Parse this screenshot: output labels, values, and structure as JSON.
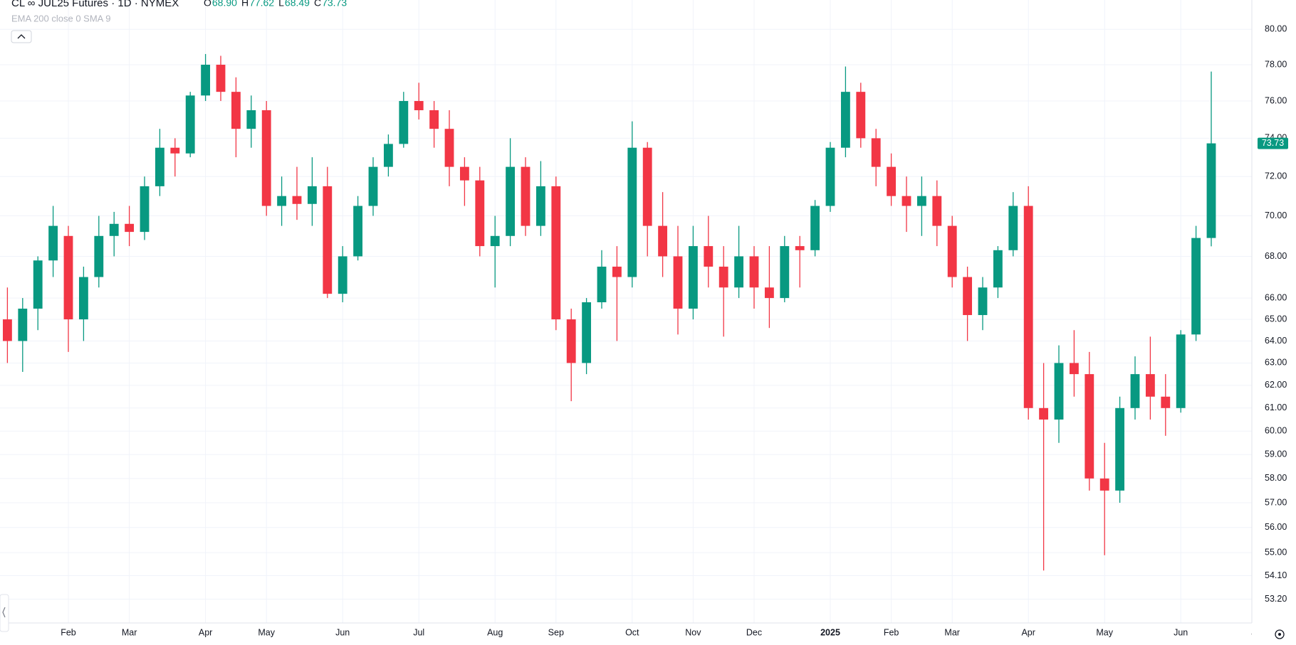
{
  "header": {
    "symbol": "CL ∞ JUL25 Futures · 1D · NYMEX",
    "ohlc": [
      {
        "label": "O",
        "value": "68.90"
      },
      {
        "label": "H",
        "value": "77.62"
      },
      {
        "label": "L",
        "value": "68.49"
      },
      {
        "label": "C",
        "value": "73.73"
      }
    ],
    "indicators": "EMA 200 close 0 SMA 9"
  },
  "chart_data": {
    "type": "candlestick",
    "categories": [
      null,
      null,
      null,
      null,
      "Feb",
      null,
      null,
      null,
      "Mar",
      null,
      null,
      null,
      null,
      "Apr",
      null,
      null,
      null,
      "May",
      null,
      null,
      null,
      null,
      "Jun",
      null,
      null,
      null,
      null,
      "Jul",
      null,
      null,
      null,
      null,
      "Aug",
      null,
      null,
      null,
      "Sep",
      null,
      null,
      null,
      null,
      "Oct",
      null,
      null,
      null,
      "Nov",
      null,
      null,
      null,
      "Dec",
      null,
      null,
      null,
      null,
      "2025",
      null,
      null,
      null,
      "Feb",
      null,
      null,
      null,
      "Mar",
      null,
      null,
      null,
      null,
      "Apr",
      null,
      null,
      null,
      null,
      "May",
      null,
      null,
      null,
      null,
      "Jun",
      null,
      null,
      null,
      null,
      "Jul"
    ],
    "open": [
      65,
      64,
      65.5,
      67.8,
      69,
      65,
      67,
      69,
      69.6,
      69.2,
      71.5,
      73.5,
      73.2,
      76.3,
      78,
      76.5,
      74.5,
      75.5,
      70.5,
      71,
      70.6,
      71.5,
      66.2,
      68,
      70.5,
      72.5,
      73.7,
      76,
      75.5,
      74.5,
      72.5,
      71.8,
      68.5,
      69,
      72.5,
      69.5,
      71.5,
      65,
      63,
      65.8,
      67.5,
      67,
      73.5,
      69.5,
      68,
      65.5,
      68.5,
      67.5,
      66.5,
      68,
      66.5,
      66,
      68.5,
      68.3,
      70.5,
      73.5,
      76.5,
      74,
      72.5,
      71,
      70.5,
      71,
      69.5,
      67,
      65.2,
      66.5,
      68.3,
      70.5,
      61,
      60.5,
      63,
      62.5,
      58,
      57.5,
      61,
      62.5,
      61.5,
      61,
      64.3,
      68.9,
      null,
      null,
      null
    ],
    "high": [
      66.5,
      66,
      68,
      70.5,
      69.5,
      67.5,
      70,
      70.2,
      70.5,
      72,
      74.5,
      74,
      76.5,
      78.6,
      78.5,
      77.3,
      76.3,
      76,
      72,
      72.5,
      73,
      72.5,
      68.5,
      71,
      73,
      74.2,
      76.5,
      77,
      76,
      75.5,
      73,
      72.5,
      70,
      74,
      73,
      72.8,
      72,
      65.5,
      66,
      68.3,
      68.5,
      74.9,
      73.8,
      71.2,
      69.5,
      69.5,
      70,
      68.5,
      69.5,
      68.5,
      68.5,
      69,
      69,
      70.8,
      73.8,
      77.9,
      77,
      74.5,
      73.2,
      72,
      72,
      71.8,
      70,
      67.5,
      67,
      68.5,
      71.2,
      71.5,
      63,
      63.8,
      64.5,
      63.5,
      59.5,
      61.5,
      63.3,
      64.2,
      62.5,
      64.5,
      69.5,
      77.62,
      null,
      null,
      null
    ],
    "low": [
      63,
      62.6,
      64.5,
      67,
      63.5,
      64,
      66.5,
      68,
      68.5,
      68.8,
      71,
      72,
      73,
      76,
      76,
      73,
      73.5,
      70,
      69.5,
      69.8,
      69.5,
      66,
      65.8,
      67.8,
      70,
      72,
      73.5,
      75,
      73.5,
      71.5,
      70.5,
      68,
      66.5,
      68.5,
      69,
      69,
      64.5,
      61.3,
      62.5,
      65.5,
      64,
      66.5,
      68,
      67,
      64.3,
      65,
      66.5,
      64.2,
      66,
      65.5,
      64.6,
      65.8,
      66.5,
      68,
      70.2,
      73,
      73.5,
      71.5,
      70.5,
      69.2,
      69,
      68.5,
      66.5,
      64,
      64.5,
      66,
      68,
      60.5,
      54.3,
      59.5,
      61.5,
      57.5,
      54.9,
      57,
      60.5,
      60.5,
      59.8,
      60.8,
      64,
      68.49,
      null,
      null,
      null
    ],
    "close": [
      64,
      65.5,
      67.8,
      69.5,
      65,
      67,
      69,
      69.6,
      69.2,
      71.5,
      73.5,
      73.2,
      76.3,
      78,
      76.5,
      74.5,
      75.5,
      70.5,
      71,
      70.6,
      71.5,
      66.2,
      68,
      70.5,
      72.5,
      73.7,
      76,
      75.5,
      74.5,
      72.5,
      71.8,
      68.5,
      69,
      72.5,
      69.5,
      71.5,
      65,
      63,
      65.8,
      67.5,
      67,
      73.5,
      69.5,
      68,
      65.5,
      68.5,
      67.5,
      66.5,
      68,
      66.5,
      66,
      68.5,
      68.3,
      70.5,
      73.5,
      76.5,
      74,
      72.5,
      71,
      70.5,
      71,
      69.5,
      67,
      65.2,
      66.5,
      68.3,
      70.5,
      61,
      60.5,
      63,
      62.5,
      58,
      57.5,
      61,
      62.5,
      61.5,
      61,
      64.3,
      68.9,
      73.73,
      null,
      null,
      null
    ],
    "up_color": "#089981",
    "down_color": "#f23645",
    "log_scale": true,
    "grid": true,
    "ylim": [
      52.3,
      81.7
    ],
    "yticks": [
      {
        "value": 53.2,
        "label": "53.20"
      },
      {
        "value": 54.1,
        "label": "54.10"
      },
      {
        "value": 55,
        "label": "55.00"
      },
      {
        "value": 56,
        "label": "56.00"
      },
      {
        "value": 57,
        "label": "57.00"
      },
      {
        "value": 58,
        "label": "58.00"
      },
      {
        "value": 59,
        "label": "59.00"
      },
      {
        "value": 60,
        "label": "60.00"
      },
      {
        "value": 61,
        "label": "61.00"
      },
      {
        "value": 62,
        "label": "62.00"
      },
      {
        "value": 63,
        "label": "63.00"
      },
      {
        "value": 64,
        "label": "64.00"
      },
      {
        "value": 65,
        "label": "65.00"
      },
      {
        "value": 66,
        "label": "66.00"
      },
      {
        "value": 68,
        "label": "68.00"
      },
      {
        "value": 70,
        "label": "70.00"
      },
      {
        "value": 72,
        "label": "72.00"
      },
      {
        "value": 74,
        "label": "74.00"
      },
      {
        "value": 76,
        "label": "76.00"
      },
      {
        "value": 78,
        "label": "78.00"
      },
      {
        "value": 80,
        "label": "80.00"
      }
    ],
    "last_price": {
      "value": 73.73,
      "label": "73.73"
    }
  }
}
